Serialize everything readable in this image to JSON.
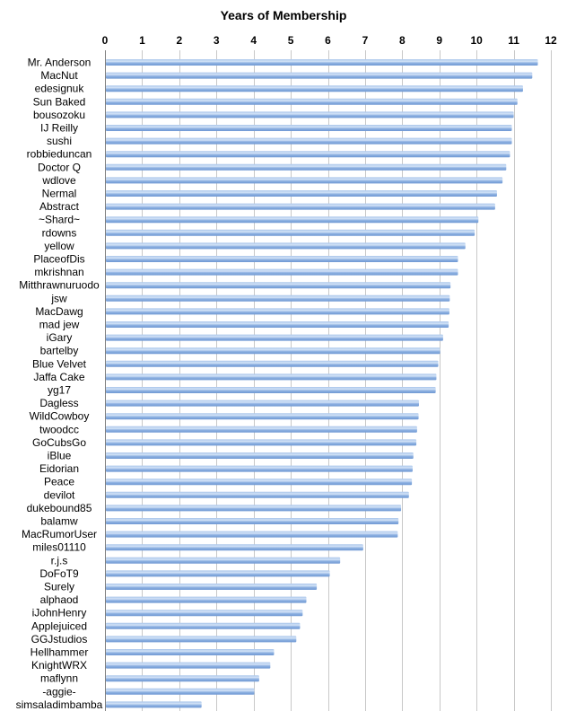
{
  "chart_data": {
    "type": "bar",
    "orientation": "horizontal",
    "title": "Years of Membership",
    "xlabel": "",
    "ylabel": "",
    "xlim": [
      0,
      12
    ],
    "x_ticks": [
      "0",
      "1",
      "2",
      "3",
      "4",
      "5",
      "6",
      "7",
      "8",
      "9",
      "10",
      "11",
      "12"
    ],
    "x_axis_position": "top",
    "grid": true,
    "legend": "none",
    "bar_color": "#7ea6dc",
    "bar_highlight_color": "#d3e3f7",
    "grid_color": "#c8c8c8",
    "categories": [
      "Mr. Anderson",
      "MacNut",
      "edesignuk",
      "Sun Baked",
      "bousozoku",
      "IJ Reilly",
      "sushi",
      "robbieduncan",
      "Doctor Q",
      "wdlove",
      "Nermal",
      "Abstract",
      "~Shard~",
      "rdowns",
      "yellow",
      "PlaceofDis",
      "mkrishnan",
      "Mitthrawnuruodo",
      "jsw",
      "MacDawg",
      "mad jew",
      "iGary",
      "bartelby",
      "Blue Velvet",
      "Jaffa Cake",
      "yg17",
      "Dagless",
      "WildCowboy",
      "twoodcc",
      "GoCubsGo",
      "iBlue",
      "Eidorian",
      "Peace",
      "devilot",
      "dukebound85",
      "balamw",
      "MacRumorUser",
      "miles01110",
      "r.j.s",
      "DoFoT9",
      "Surely",
      "alphaod",
      "iJohnHenry",
      "Applejuiced",
      "GGJstudios",
      "Hellhammer",
      "KnightWRX",
      "maflynn",
      "-aggie-",
      "simsaladimbamba"
    ],
    "values": [
      11.65,
      11.5,
      11.25,
      11.1,
      11.0,
      10.95,
      10.95,
      10.9,
      10.8,
      10.7,
      10.55,
      10.5,
      10.05,
      9.95,
      9.7,
      9.5,
      9.5,
      9.3,
      9.28,
      9.27,
      9.25,
      9.1,
      9.02,
      8.97,
      8.92,
      8.9,
      8.45,
      8.44,
      8.4,
      8.38,
      8.3,
      8.28,
      8.26,
      8.18,
      7.97,
      7.9,
      7.88,
      6.95,
      6.33,
      6.05,
      5.7,
      5.42,
      5.32,
      5.25,
      5.15,
      4.55,
      4.45,
      4.15,
      4.02,
      2.6
    ]
  }
}
